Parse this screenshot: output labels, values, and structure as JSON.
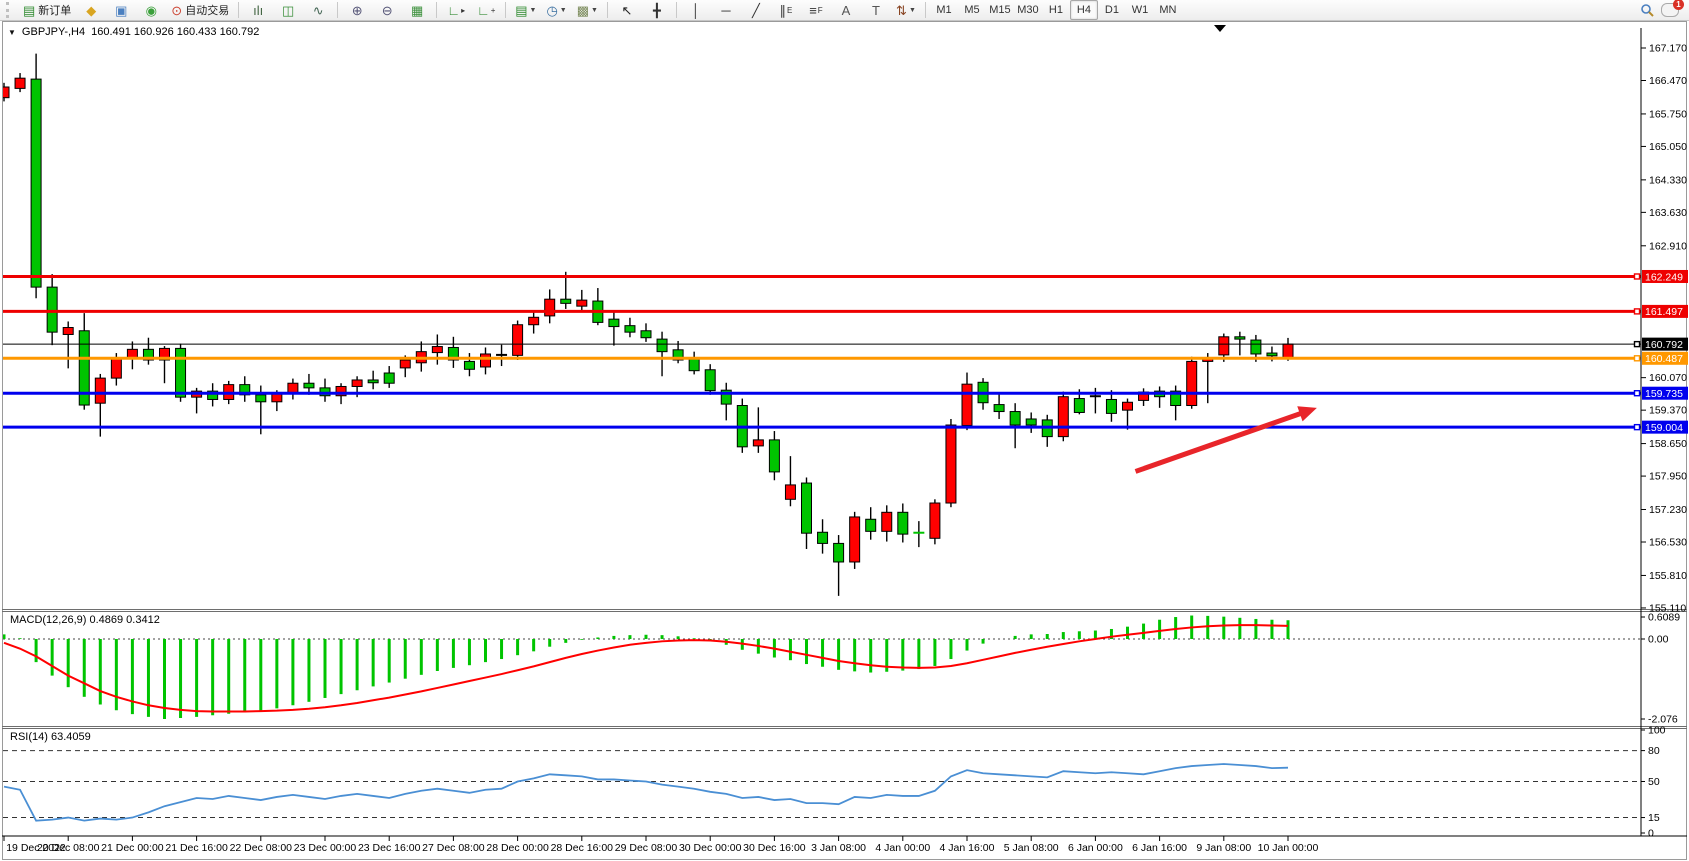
{
  "window": {
    "title_symbol": "GBPJPY-,H4",
    "title_ohlc": "160.491 160.926 160.433 160.792"
  },
  "toolbar": {
    "buttons": [
      {
        "name": "new-order-button",
        "glyph": "▤",
        "glyph_color": "#2e8b2e",
        "label": "新订单"
      },
      {
        "name": "styler-button",
        "glyph": "◆",
        "glyph_color": "#d9a520"
      },
      {
        "name": "profile-button",
        "glyph": "▣",
        "glyph_color": "#4a7fc0"
      },
      {
        "name": "signals-button",
        "glyph": "◉",
        "glyph_color": "#3aa03a"
      },
      {
        "name": "auto-trading-button",
        "glyph": "⊙",
        "glyph_color": "#cc4433",
        "label": "自动交易"
      },
      {
        "divider": true
      },
      {
        "name": "bar-chart-button",
        "glyph": "ılı",
        "glyph_color": "#446644"
      },
      {
        "name": "candle-chart-button",
        "glyph": "◫",
        "glyph_color": "#3a8f3a"
      },
      {
        "name": "line-chart-button",
        "glyph": "∿",
        "glyph_color": "#446655"
      },
      {
        "divider": true
      },
      {
        "name": "zoom-in-button",
        "glyph": "⊕",
        "glyph_color": "#555577"
      },
      {
        "name": "zoom-out-button",
        "glyph": "⊖",
        "glyph_color": "#555577"
      },
      {
        "name": "tile-windows-button",
        "glyph": "▦",
        "glyph_color": "#3a8f3a"
      },
      {
        "divider": true
      },
      {
        "name": "indicators-button",
        "glyph": "∟",
        "glyph_color": "#3a8f3a",
        "sub": "▸"
      },
      {
        "name": "indicator-windows-button",
        "glyph": "∟",
        "glyph_color": "#3a8f3a",
        "sub": "+"
      },
      {
        "divider": true
      },
      {
        "name": "new-chart-button",
        "glyph": "▤",
        "glyph_color": "#2e8b2e",
        "dropdown": true
      },
      {
        "name": "periods-button",
        "glyph": "◷",
        "glyph_color": "#3a6fa0",
        "dropdown": true
      },
      {
        "name": "templates-button",
        "glyph": "▩",
        "glyph_color": "#7a8a5a",
        "dropdown": true
      },
      {
        "divider": true
      },
      {
        "name": "cursor-button",
        "glyph": "↖",
        "glyph_color": "#222"
      },
      {
        "name": "crosshair-button",
        "glyph": "╋",
        "glyph_color": "#333"
      },
      {
        "divider": true
      },
      {
        "name": "vertical-line-button",
        "glyph": "│",
        "glyph_color": "#333"
      },
      {
        "name": "horizontal-line-button",
        "glyph": "─",
        "glyph_color": "#333"
      },
      {
        "name": "trendline-button",
        "glyph": "╱",
        "glyph_color": "#333"
      },
      {
        "name": "equidistant-channel-button",
        "glyph": "∥",
        "glyph_color": "#333",
        "sub": "E"
      },
      {
        "name": "fibonacci-button",
        "glyph": "≡",
        "glyph_color": "#333",
        "sub": "F"
      },
      {
        "name": "text-button",
        "glyph": "A",
        "glyph_color": "#555"
      },
      {
        "name": "text-label-button",
        "glyph": "T",
        "glyph_color": "#555"
      },
      {
        "name": "arrows-button",
        "glyph": "⇅",
        "glyph_color": "#884422",
        "dropdown": true
      },
      {
        "divider": true
      }
    ],
    "timeframes": [
      "M1",
      "M5",
      "M15",
      "M30",
      "H1",
      "H4",
      "D1",
      "W1",
      "MN"
    ],
    "active_timeframe": "H4",
    "notification_count": "1"
  },
  "price_axis": {
    "ticks": [
      "167.170",
      "166.470",
      "165.750",
      "165.050",
      "164.330",
      "163.630",
      "162.910",
      "160.070",
      "159.370",
      "158.650",
      "157.950",
      "157.230",
      "156.530",
      "155.810",
      "155.110"
    ],
    "badges": [
      {
        "text": "162.249",
        "color": "#ee0000"
      },
      {
        "text": "161.497",
        "color": "#ee0000"
      },
      {
        "text": "160.792",
        "color": "#000000"
      },
      {
        "text": "160.487",
        "color": "#ff9800"
      },
      {
        "text": "159.735",
        "color": "#0000ee"
      },
      {
        "text": "159.004",
        "color": "#0000ee"
      }
    ]
  },
  "macd_panel": {
    "label": "MACD(12,26,9) 0.4869 0.3412",
    "axis_labels": [
      "0.6089",
      "0.00",
      "-2.076"
    ]
  },
  "rsi_panel": {
    "label": "RSI(14) 63.4059",
    "axis_labels": [
      "100",
      "80",
      "50",
      "15",
      "0"
    ],
    "levels": [
      80,
      50,
      15
    ]
  },
  "chart_data": {
    "type": "candlestick",
    "symbol": "GBPJPY-",
    "timeframe": "H4",
    "current_bar": {
      "open": 160.491,
      "high": 160.926,
      "low": 160.433,
      "close": 160.792
    },
    "bull_color": "#ff0000",
    "bear_color": "#00c400",
    "y_visible_range": [
      155.11,
      167.17
    ],
    "x_labels": [
      "19 Dec 2022",
      "20 Dec 08:00",
      "21 Dec 00:00",
      "21 Dec 16:00",
      "22 Dec 08:00",
      "23 Dec 00:00",
      "23 Dec 16:00",
      "27 Dec 08:00",
      "28 Dec 00:00",
      "28 Dec 16:00",
      "29 Dec 08:00",
      "30 Dec 00:00",
      "30 Dec 16:00",
      "3 Jan 08:00",
      "4 Jan 00:00",
      "4 Jan 16:00",
      "5 Jan 08:00",
      "6 Jan 00:00",
      "6 Jan 16:00",
      "9 Jan 08:00",
      "10 Jan 00:00"
    ],
    "x_label_every": 4,
    "candles": [
      [
        166.1,
        166.42,
        166.02,
        166.33
      ],
      [
        166.3,
        166.63,
        166.22,
        166.52
      ],
      [
        166.5,
        167.05,
        161.78,
        162.02
      ],
      [
        162.02,
        162.3,
        160.77,
        161.05
      ],
      [
        161.0,
        161.28,
        160.27,
        161.15
      ],
      [
        161.08,
        161.46,
        159.38,
        159.48
      ],
      [
        159.52,
        160.15,
        158.8,
        160.06
      ],
      [
        160.06,
        160.6,
        159.9,
        160.5
      ],
      [
        160.5,
        160.85,
        160.25,
        160.68
      ],
      [
        160.68,
        160.93,
        160.35,
        160.45
      ],
      [
        160.45,
        160.75,
        159.95,
        160.7
      ],
      [
        160.7,
        160.8,
        159.55,
        159.65
      ],
      [
        159.65,
        159.85,
        159.3,
        159.78
      ],
      [
        159.78,
        159.95,
        159.45,
        159.6
      ],
      [
        159.6,
        160.0,
        159.5,
        159.92
      ],
      [
        159.92,
        160.1,
        159.55,
        159.7
      ],
      [
        159.7,
        159.9,
        158.85,
        159.55
      ],
      [
        159.55,
        159.8,
        159.35,
        159.75
      ],
      [
        159.75,
        160.05,
        159.6,
        159.95
      ],
      [
        159.95,
        160.15,
        159.7,
        159.85
      ],
      [
        159.85,
        160.05,
        159.55,
        159.68
      ],
      [
        159.68,
        159.95,
        159.5,
        159.88
      ],
      [
        159.88,
        160.1,
        159.65,
        160.02
      ],
      [
        160.02,
        160.22,
        159.82,
        159.96
      ],
      [
        160.17,
        160.32,
        159.85,
        159.95
      ],
      [
        160.28,
        160.55,
        160.08,
        160.45
      ],
      [
        160.39,
        160.85,
        160.2,
        160.63
      ],
      [
        160.61,
        161.0,
        160.35,
        160.74
      ],
      [
        160.72,
        160.95,
        160.28,
        160.45
      ],
      [
        160.42,
        160.6,
        160.1,
        160.25
      ],
      [
        160.3,
        160.72,
        160.14,
        160.58
      ],
      [
        160.55,
        160.78,
        160.32,
        160.56
      ],
      [
        160.55,
        161.3,
        160.45,
        161.21
      ],
      [
        161.21,
        161.48,
        161.02,
        161.37
      ],
      [
        161.4,
        161.97,
        161.24,
        161.76
      ],
      [
        161.76,
        162.35,
        161.55,
        161.67
      ],
      [
        161.61,
        161.96,
        161.48,
        161.74
      ],
      [
        161.72,
        162.0,
        161.2,
        161.26
      ],
      [
        161.33,
        161.52,
        160.76,
        161.17
      ],
      [
        161.19,
        161.36,
        160.94,
        161.05
      ],
      [
        161.08,
        161.24,
        160.84,
        160.93
      ],
      [
        160.9,
        161.06,
        160.1,
        160.63
      ],
      [
        160.67,
        160.86,
        160.38,
        160.45
      ],
      [
        160.47,
        160.63,
        160.14,
        160.22
      ],
      [
        160.24,
        160.36,
        159.7,
        159.79
      ],
      [
        159.8,
        159.96,
        159.15,
        159.5
      ],
      [
        159.47,
        159.62,
        158.45,
        158.58
      ],
      [
        158.6,
        159.43,
        158.45,
        158.73
      ],
      [
        158.73,
        158.92,
        157.86,
        158.04
      ],
      [
        157.45,
        158.38,
        157.3,
        157.76
      ],
      [
        157.8,
        157.92,
        156.38,
        156.72
      ],
      [
        156.74,
        157.02,
        156.28,
        156.5
      ],
      [
        156.5,
        156.68,
        155.37,
        156.1
      ],
      [
        156.1,
        157.18,
        155.95,
        157.07
      ],
      [
        157.02,
        157.28,
        156.58,
        156.76
      ],
      [
        156.76,
        157.32,
        156.54,
        157.17
      ],
      [
        157.17,
        157.36,
        156.52,
        156.7
      ],
      [
        156.72,
        156.98,
        156.42,
        156.73,
        "g"
      ],
      [
        156.61,
        157.45,
        156.48,
        157.37
      ],
      [
        157.37,
        159.18,
        157.28,
        159.05
      ],
      [
        159.04,
        160.18,
        158.94,
        159.93
      ],
      [
        159.97,
        160.06,
        159.38,
        159.53
      ],
      [
        159.49,
        159.72,
        159.18,
        159.34
      ],
      [
        159.34,
        159.52,
        158.55,
        159.05
      ],
      [
        159.18,
        159.32,
        158.88,
        159.05
      ],
      [
        159.16,
        159.27,
        158.58,
        158.8
      ],
      [
        158.8,
        159.77,
        158.7,
        159.66
      ],
      [
        159.62,
        159.82,
        159.28,
        159.32
      ],
      [
        159.66,
        159.85,
        159.3,
        159.67
      ],
      [
        159.6,
        159.8,
        159.12,
        159.3
      ],
      [
        159.37,
        159.62,
        158.95,
        159.54
      ],
      [
        159.58,
        159.84,
        159.46,
        159.76
      ],
      [
        159.78,
        159.88,
        159.42,
        159.66
      ],
      [
        159.78,
        159.9,
        159.15,
        159.47
      ],
      [
        159.47,
        160.52,
        159.4,
        160.42
      ],
      [
        160.42,
        160.6,
        159.52,
        160.49
      ],
      [
        160.56,
        161.02,
        160.41,
        160.95
      ],
      [
        160.95,
        161.06,
        160.55,
        160.9
      ],
      [
        160.88,
        160.99,
        160.41,
        160.58
      ],
      [
        160.6,
        160.74,
        160.42,
        160.54
      ],
      [
        160.491,
        160.926,
        160.433,
        160.792
      ]
    ],
    "hlines": [
      {
        "price": 162.249,
        "color": "#ee0000",
        "width": 3
      },
      {
        "price": 161.497,
        "color": "#ee0000",
        "width": 3
      },
      {
        "price": 160.487,
        "color": "#ff9800",
        "width": 3
      },
      {
        "price": 159.735,
        "color": "#0000ee",
        "width": 3
      },
      {
        "price": 159.004,
        "color": "#0000ee",
        "width": 3
      }
    ],
    "current_price_line": {
      "price": 160.792,
      "color": "#000000"
    },
    "arrow": {
      "from_index": 70.5,
      "from_price": 158.05,
      "to_index": 81.8,
      "to_price": 159.42,
      "color": "#e8252a"
    },
    "macd": {
      "params": "12,26,9",
      "main": 0.4869,
      "signal_value": 0.3412,
      "y_range": [
        -2.076,
        0.6089
      ],
      "hist_color": "#00c400",
      "signal_color": "#ff0000",
      "histogram": [
        0.12,
        0.02,
        -0.6,
        -0.95,
        -1.25,
        -1.5,
        -1.7,
        -1.85,
        -1.95,
        -2.02,
        -2.076,
        -2.05,
        -2.02,
        -1.98,
        -1.94,
        -1.9,
        -1.86,
        -1.8,
        -1.72,
        -1.63,
        -1.53,
        -1.43,
        -1.33,
        -1.23,
        -1.13,
        -1.03,
        -0.93,
        -0.83,
        -0.75,
        -0.68,
        -0.6,
        -0.52,
        -0.42,
        -0.32,
        -0.2,
        -0.1,
        -0.02,
        0.04,
        0.08,
        0.1,
        0.11,
        0.1,
        0.07,
        0.02,
        -0.05,
        -0.15,
        -0.28,
        -0.38,
        -0.48,
        -0.55,
        -0.65,
        -0.72,
        -0.8,
        -0.84,
        -0.87,
        -0.85,
        -0.82,
        -0.78,
        -0.7,
        -0.52,
        -0.3,
        -0.12,
        0,
        0.08,
        0.12,
        0.13,
        0.18,
        0.2,
        0.22,
        0.26,
        0.32,
        0.4,
        0.5,
        0.57,
        0.6089,
        0.6,
        0.58,
        0.55,
        0.52,
        0.5,
        0.4869
      ],
      "signal": [
        -0.1,
        -0.25,
        -0.45,
        -0.7,
        -0.95,
        -1.15,
        -1.35,
        -1.5,
        -1.62,
        -1.72,
        -1.79,
        -1.84,
        -1.87,
        -1.88,
        -1.88,
        -1.88,
        -1.87,
        -1.86,
        -1.84,
        -1.81,
        -1.77,
        -1.72,
        -1.66,
        -1.59,
        -1.52,
        -1.44,
        -1.36,
        -1.27,
        -1.18,
        -1.09,
        -1.0,
        -0.91,
        -0.81,
        -0.71,
        -0.6,
        -0.49,
        -0.39,
        -0.3,
        -0.22,
        -0.15,
        -0.1,
        -0.06,
        -0.04,
        -0.03,
        -0.04,
        -0.07,
        -0.12,
        -0.18,
        -0.25,
        -0.33,
        -0.41,
        -0.49,
        -0.57,
        -0.63,
        -0.68,
        -0.72,
        -0.74,
        -0.75,
        -0.74,
        -0.7,
        -0.63,
        -0.54,
        -0.45,
        -0.36,
        -0.28,
        -0.2,
        -0.13,
        -0.06,
        0,
        0.06,
        0.11,
        0.16,
        0.21,
        0.26,
        0.3,
        0.33,
        0.35,
        0.36,
        0.36,
        0.35,
        0.3412
      ]
    },
    "rsi": {
      "period": 14,
      "last": 63.4059,
      "color": "#4a8fd4",
      "values": [
        45,
        42,
        12,
        13,
        15,
        12,
        14,
        13,
        15,
        20,
        26,
        30,
        34,
        33,
        36,
        34,
        32,
        35,
        37,
        35,
        33,
        36,
        38,
        36,
        34,
        38,
        41,
        43,
        41,
        39,
        42,
        43,
        50,
        53,
        57,
        56,
        55,
        52,
        52,
        51,
        50,
        47,
        45,
        43,
        40,
        38,
        34,
        35,
        32,
        33,
        29,
        29,
        28,
        35,
        34,
        37,
        36,
        36,
        41,
        55,
        61,
        58,
        57,
        56,
        55,
        54,
        60,
        59,
        58,
        59,
        58,
        57,
        60,
        63,
        65,
        66,
        67,
        66,
        65,
        63,
        63.41
      ]
    }
  }
}
